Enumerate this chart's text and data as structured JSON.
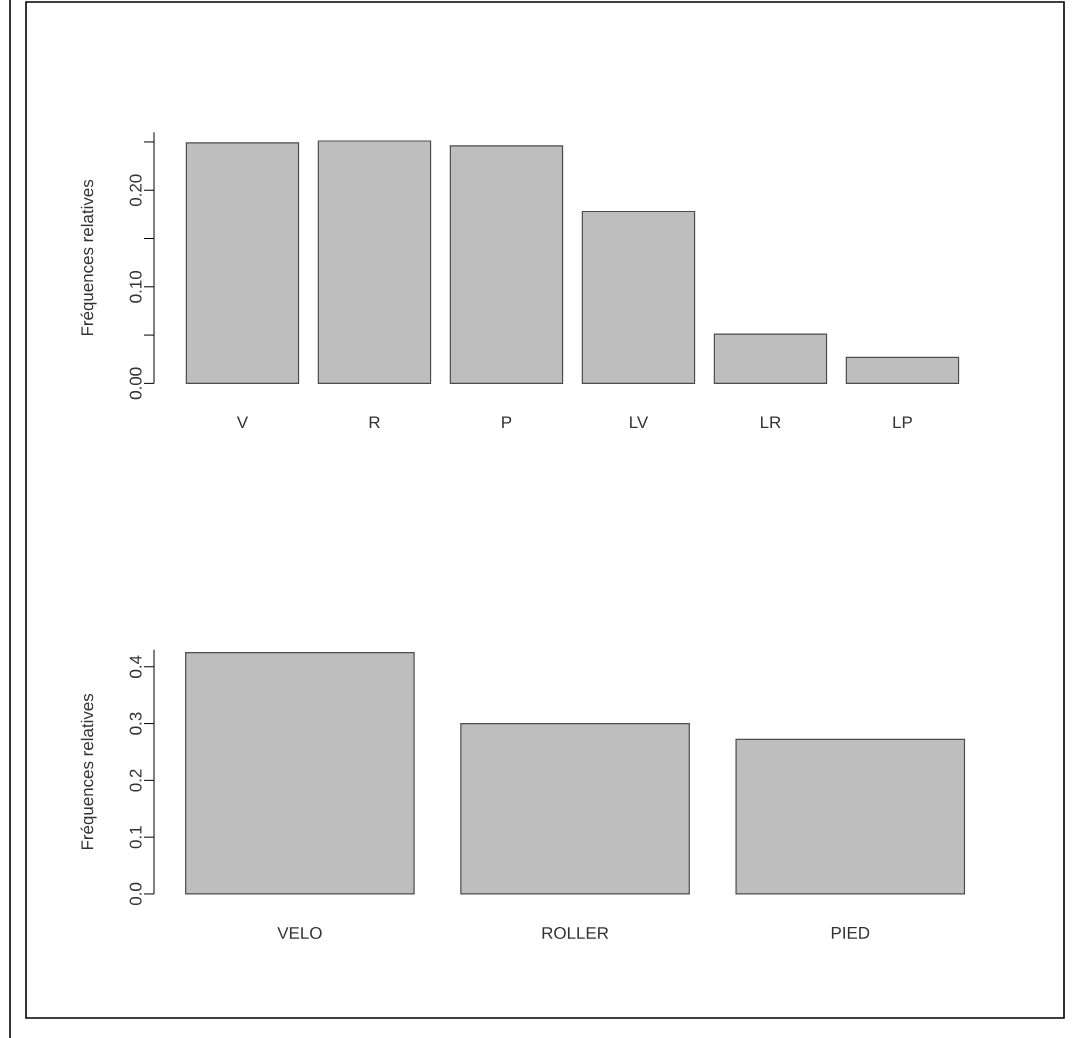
{
  "chart_data": [
    {
      "type": "bar",
      "ylabel": "Fréquences relatives",
      "categories": [
        "V",
        "R",
        "P",
        "LV",
        "LR",
        "LP"
      ],
      "values": [
        0.249,
        0.251,
        0.246,
        0.178,
        0.051,
        0.027
      ],
      "color": "#bebebe",
      "ylim": [
        0,
        0.26
      ],
      "yticks": [
        {
          "value": 0,
          "label": "0.00"
        },
        {
          "value": 0.05,
          "label": null
        },
        {
          "value": 0.1,
          "label": "0.10"
        },
        {
          "value": 0.15,
          "label": null
        },
        {
          "value": 0.2,
          "label": "0.20"
        },
        {
          "value": 0.25,
          "label": null
        }
      ]
    },
    {
      "type": "bar",
      "ylabel": "Fréquences relatives",
      "categories": [
        "VELO",
        "ROLLER",
        "PIED"
      ],
      "values": [
        0.425,
        0.3,
        0.272
      ],
      "color": "#bebebe",
      "ylim": [
        0,
        0.43
      ],
      "yticks": [
        {
          "value": 0,
          "label": "0.0"
        },
        {
          "value": 0.1,
          "label": "0.1"
        },
        {
          "value": 0.2,
          "label": "0.2"
        },
        {
          "value": 0.3,
          "label": "0.3"
        },
        {
          "value": 0.4,
          "label": "0.4"
        }
      ]
    }
  ]
}
